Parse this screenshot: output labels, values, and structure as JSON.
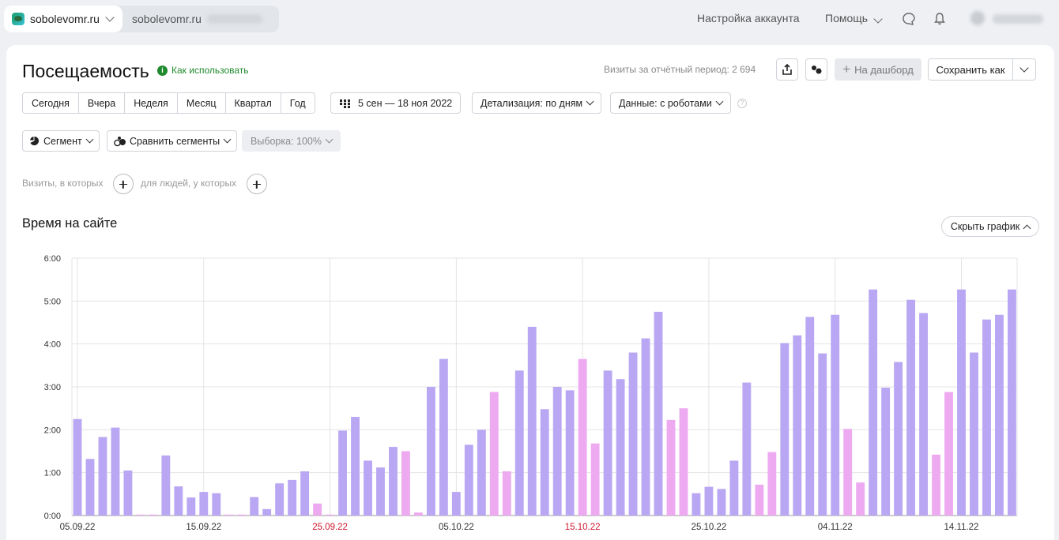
{
  "topbar": {
    "site_active": "sobolevomr.ru",
    "site_second": "sobolevomr.ru",
    "account_settings": "Настройка аккаунта",
    "help": "Помощь"
  },
  "report": {
    "title": "Посещаемость",
    "how_to_use": "Как использовать",
    "visits_period": "Визиты за отчётный период: 2 694",
    "to_dashboard": "На дашборд",
    "save_as": "Сохранить как"
  },
  "periods": [
    "Сегодня",
    "Вчера",
    "Неделя",
    "Месяц",
    "Квартал",
    "Год"
  ],
  "date_range": "5 сен — 18 ноя 2022",
  "detail": "Детализация: по дням",
  "data_mode": "Данные: с роботами",
  "segment": "Сегмент",
  "compare_segments": "Сравнить сегменты",
  "sample": "Выборка: 100%",
  "filters": {
    "visits_where": "Визиты, в которых",
    "people_where": "для людей, у которых"
  },
  "chart_section": {
    "title": "Время на сайте",
    "hide_chart": "Скрыть график"
  },
  "colors": {
    "weekday_bar": "#b9a7f3",
    "weekend_bar": "#eeaaf1",
    "accent_green": "#1f8a2d",
    "holiday_label": "#d0182f"
  },
  "chart_data": {
    "type": "bar",
    "title": "Время на сайте",
    "xlabel": "",
    "ylabel": "",
    "unit": "minutes:seconds",
    "ylim": [
      0,
      6
    ],
    "y_ticks": [
      "0:00",
      "1:00",
      "2:00",
      "3:00",
      "4:00",
      "5:00",
      "6:00"
    ],
    "x_tick_labels": [
      {
        "label": "05.09.22",
        "index": 0,
        "red": false
      },
      {
        "label": "15.09.22",
        "index": 10,
        "red": false
      },
      {
        "label": "25.09.22",
        "index": 20,
        "red": true
      },
      {
        "label": "05.10.22",
        "index": 30,
        "red": false
      },
      {
        "label": "15.10.22",
        "index": 40,
        "red": true
      },
      {
        "label": "25.10.22",
        "index": 50,
        "red": false
      },
      {
        "label": "04.11.22",
        "index": 60,
        "red": false
      },
      {
        "label": "14.11.22",
        "index": 70,
        "red": false
      }
    ],
    "start_date": "05.09.22",
    "values_minutes": [
      2.25,
      1.32,
      1.83,
      2.05,
      1.05,
      0.02,
      0.02,
      1.4,
      0.68,
      0.42,
      0.55,
      0.52,
      0.02,
      0.02,
      0.43,
      0.15,
      0.75,
      0.83,
      1.03,
      0.28,
      0.02,
      1.98,
      2.3,
      1.28,
      1.12,
      1.6,
      1.5,
      0.07,
      3.0,
      3.65,
      0.55,
      1.65,
      2.0,
      2.88,
      1.03,
      3.38,
      4.4,
      2.48,
      3.0,
      2.92,
      3.65,
      1.68,
      3.38,
      3.18,
      3.8,
      4.13,
      4.75,
      2.23,
      2.5,
      0.52,
      0.67,
      0.62,
      1.28,
      3.1,
      0.72,
      1.48,
      4.02,
      4.2,
      4.63,
      3.78,
      4.68,
      2.02,
      0.77,
      5.27,
      2.98,
      3.58,
      5.03,
      4.72,
      1.42,
      2.88,
      5.27,
      3.8,
      4.57,
      4.68,
      5.27
    ],
    "weekend_flags": [
      0,
      0,
      0,
      0,
      0,
      1,
      1,
      0,
      0,
      0,
      0,
      0,
      1,
      1,
      0,
      0,
      0,
      0,
      0,
      1,
      1,
      0,
      0,
      0,
      0,
      0,
      1,
      1,
      0,
      0,
      0,
      0,
      0,
      1,
      1,
      0,
      0,
      0,
      0,
      0,
      1,
      1,
      0,
      0,
      0,
      0,
      0,
      1,
      1,
      0,
      0,
      0,
      0,
      0,
      1,
      1,
      0,
      0,
      0,
      0,
      0,
      1,
      1,
      0,
      0,
      0,
      0,
      0,
      1,
      1,
      0,
      0,
      0,
      0,
      0
    ],
    "grid": true
  }
}
